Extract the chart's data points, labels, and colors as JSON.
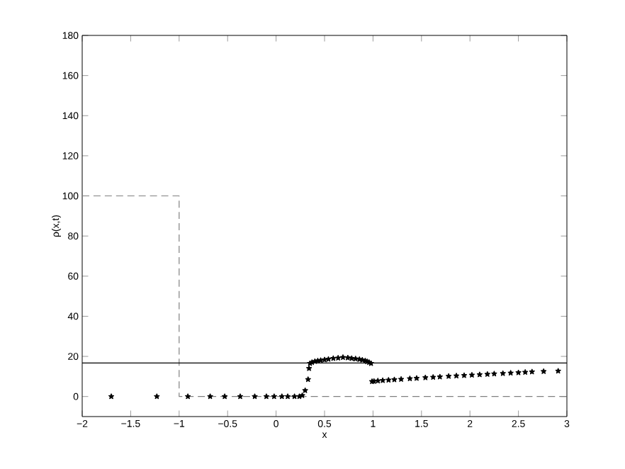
{
  "chart_data": {
    "type": "line",
    "xlabel": "x",
    "ylabel": "ρ(x,t)",
    "xlim": [
      -2,
      3
    ],
    "ylim": [
      -10,
      180
    ],
    "xticks": [
      {
        "value": -2,
        "label": "−2"
      },
      {
        "value": -1.5,
        "label": "−1.5"
      },
      {
        "value": -1,
        "label": "−1"
      },
      {
        "value": -0.5,
        "label": "−0.5"
      },
      0,
      0.5,
      1,
      1.5,
      2,
      2.5,
      3
    ],
    "yticks": [
      0,
      20,
      40,
      60,
      80,
      100,
      120,
      140,
      160,
      180
    ],
    "grid": false,
    "series": [
      {
        "color": "#808080",
        "line_style": "dashed",
        "marker": "none",
        "x": [
          -2,
          -1,
          -1,
          3
        ],
        "values": [
          100,
          100,
          0,
          0
        ]
      },
      {
        "color": "#000000",
        "line_style": "solid",
        "marker": "none",
        "x": [
          -2,
          3
        ],
        "values": [
          16.7,
          16.7
        ]
      },
      {
        "type": "scatter",
        "color": "#000000",
        "marker": "star",
        "x": [
          -1.7,
          -1.23,
          -0.91,
          -0.68,
          -0.53,
          -0.37,
          -0.22,
          -0.1,
          -0.02,
          0.06,
          0.12,
          0.19,
          0.24,
          0.27,
          0.3,
          0.33,
          0.34,
          0.35,
          0.37,
          0.4,
          0.43,
          0.46,
          0.5,
          0.54,
          0.59,
          0.64,
          0.69,
          0.74,
          0.78,
          0.82,
          0.86,
          0.89,
          0.92,
          0.94,
          0.96,
          0.98,
          0.99,
          1.01,
          1.05,
          1.1,
          1.16,
          1.22,
          1.29,
          1.38,
          1.45,
          1.54,
          1.62,
          1.69,
          1.78,
          1.86,
          1.94,
          2.02,
          2.1,
          2.18,
          2.25,
          2.34,
          2.42,
          2.5,
          2.57,
          2.64,
          2.76,
          2.91
        ],
        "values": [
          0,
          0,
          0,
          0,
          0,
          0,
          0,
          0,
          0,
          0,
          0,
          0,
          0,
          0.5,
          3,
          8.5,
          14,
          16.5,
          17,
          17.5,
          17.8,
          18,
          18.3,
          18.6,
          19,
          19.2,
          19.5,
          19.3,
          19,
          18.8,
          18.5,
          18.2,
          17.8,
          17.4,
          17,
          16.5,
          7.5,
          7.6,
          7.8,
          8,
          8.2,
          8.4,
          8.6,
          8.9,
          9.1,
          9.4,
          9.6,
          9.8,
          10.1,
          10.3,
          10.5,
          10.7,
          10.9,
          11.1,
          11.3,
          11.5,
          11.7,
          11.9,
          12.1,
          12.3,
          12.5,
          12.7
        ]
      }
    ]
  }
}
